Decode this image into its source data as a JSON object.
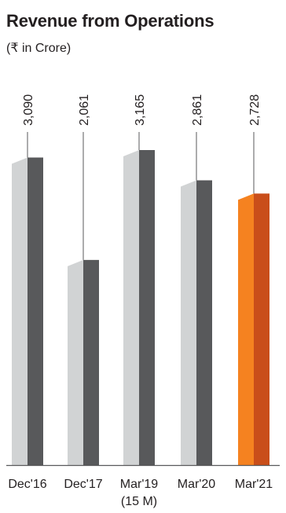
{
  "chart_data": {
    "type": "bar",
    "title": "Revenue from Operations",
    "subtitle": "(₹ in Crore)",
    "categories": [
      "Dec'16",
      "Dec'17",
      "Mar'19",
      "Mar'20",
      "Mar'21"
    ],
    "category_sublabels": [
      "",
      "",
      "(15 M)",
      "",
      ""
    ],
    "values": [
      3090,
      2061,
      3165,
      2861,
      2728
    ],
    "value_labels": [
      "3,090",
      "2,061",
      "3,165",
      "2,861",
      "2,728"
    ],
    "highlight_index": 4,
    "ylim": [
      0,
      3165
    ],
    "grid": false,
    "colors": {
      "bar_back": "#d1d3d4",
      "bar_front": "#58595b",
      "highlight_back": "#f58220",
      "highlight_front": "#c94e1a",
      "leader_line": "#58595b",
      "baseline": "#58595b"
    }
  }
}
